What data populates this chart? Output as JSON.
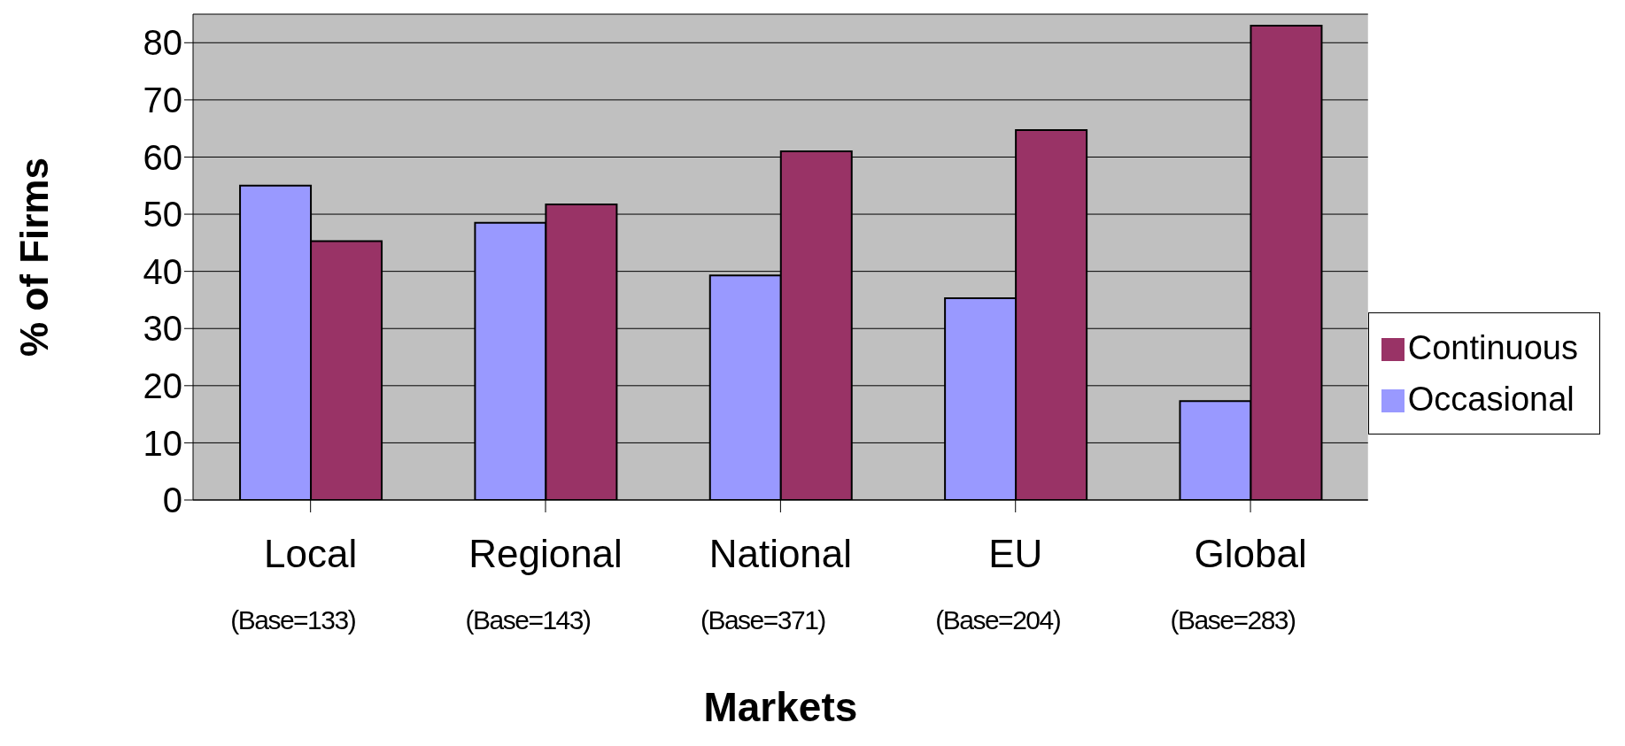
{
  "chart_data": {
    "type": "bar",
    "xlabel": "Markets",
    "ylabel": "% of Firms",
    "categories": [
      "Local\n(Base=133)",
      "Regional\n(Base=143)",
      "National\n(Base=371)",
      "EU\n(Base=204)",
      "Global\n(Base=283)"
    ],
    "series": [
      {
        "name": "Occasional",
        "color": "#9999ff",
        "values": [
          55,
          48.5,
          39.3,
          35.3,
          17.3
        ]
      },
      {
        "name": "Continuous",
        "color": "#993366",
        "values": [
          45.3,
          51.7,
          61,
          64.7,
          83
        ]
      }
    ],
    "ylim": [
      0,
      85
    ],
    "yticks": [
      0,
      10,
      20,
      30,
      40,
      50,
      60,
      70,
      80
    ],
    "grid": "y",
    "legend": "right"
  }
}
